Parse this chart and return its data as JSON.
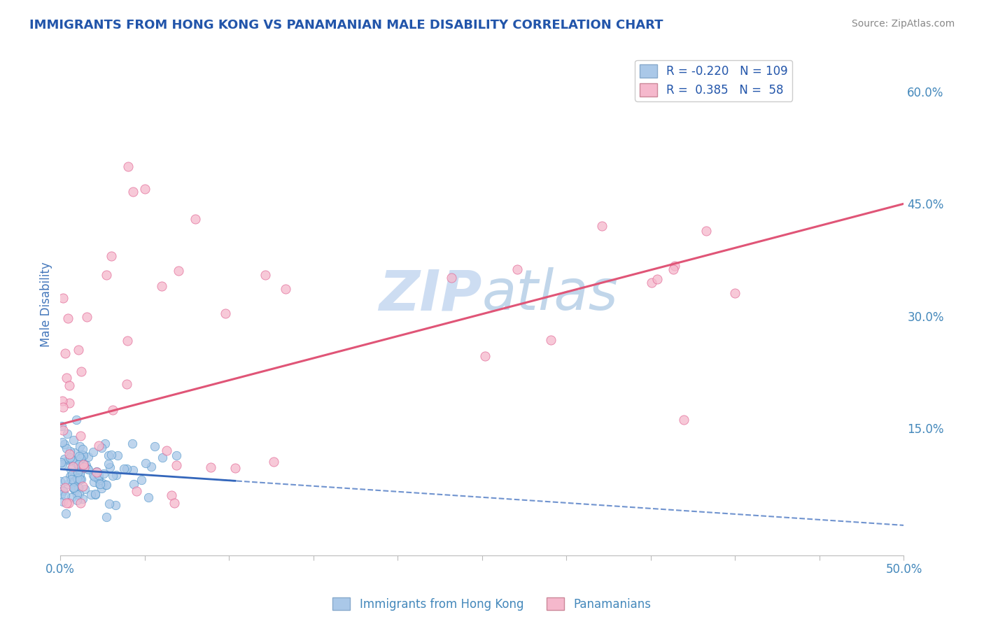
{
  "title": "IMMIGRANTS FROM HONG KONG VS PANAMANIAN MALE DISABILITY CORRELATION CHART",
  "source": "Source: ZipAtlas.com",
  "ylabel": "Male Disability",
  "xlim": [
    0.0,
    0.5
  ],
  "ylim": [
    -0.02,
    0.65
  ],
  "y_ticks_right": [
    0.15,
    0.3,
    0.45,
    0.6
  ],
  "y_tick_labels_right": [
    "15.0%",
    "30.0%",
    "45.0%",
    "60.0%"
  ],
  "hk_color": "#aac8e8",
  "hk_edge": "#5599cc",
  "pan_color": "#f5b8cc",
  "pan_edge": "#e06090",
  "hk_r": -0.22,
  "hk_n": 109,
  "pan_r": 0.385,
  "pan_n": 58,
  "hk_line_color": "#3366bb",
  "pan_line_color": "#e05577",
  "watermark_color": "#c8d8f0",
  "grid_color": "#c8d0e0",
  "title_color": "#2255aa",
  "source_color": "#888888",
  "axis_label_color": "#4477bb",
  "tick_color": "#4488bb",
  "legend_blue_face": "#aac8e8",
  "legend_pink_face": "#f5b8cc",
  "pan_line_intercept": 0.155,
  "pan_line_slope": 0.59,
  "hk_line_intercept": 0.095,
  "hk_line_slope": -0.15
}
